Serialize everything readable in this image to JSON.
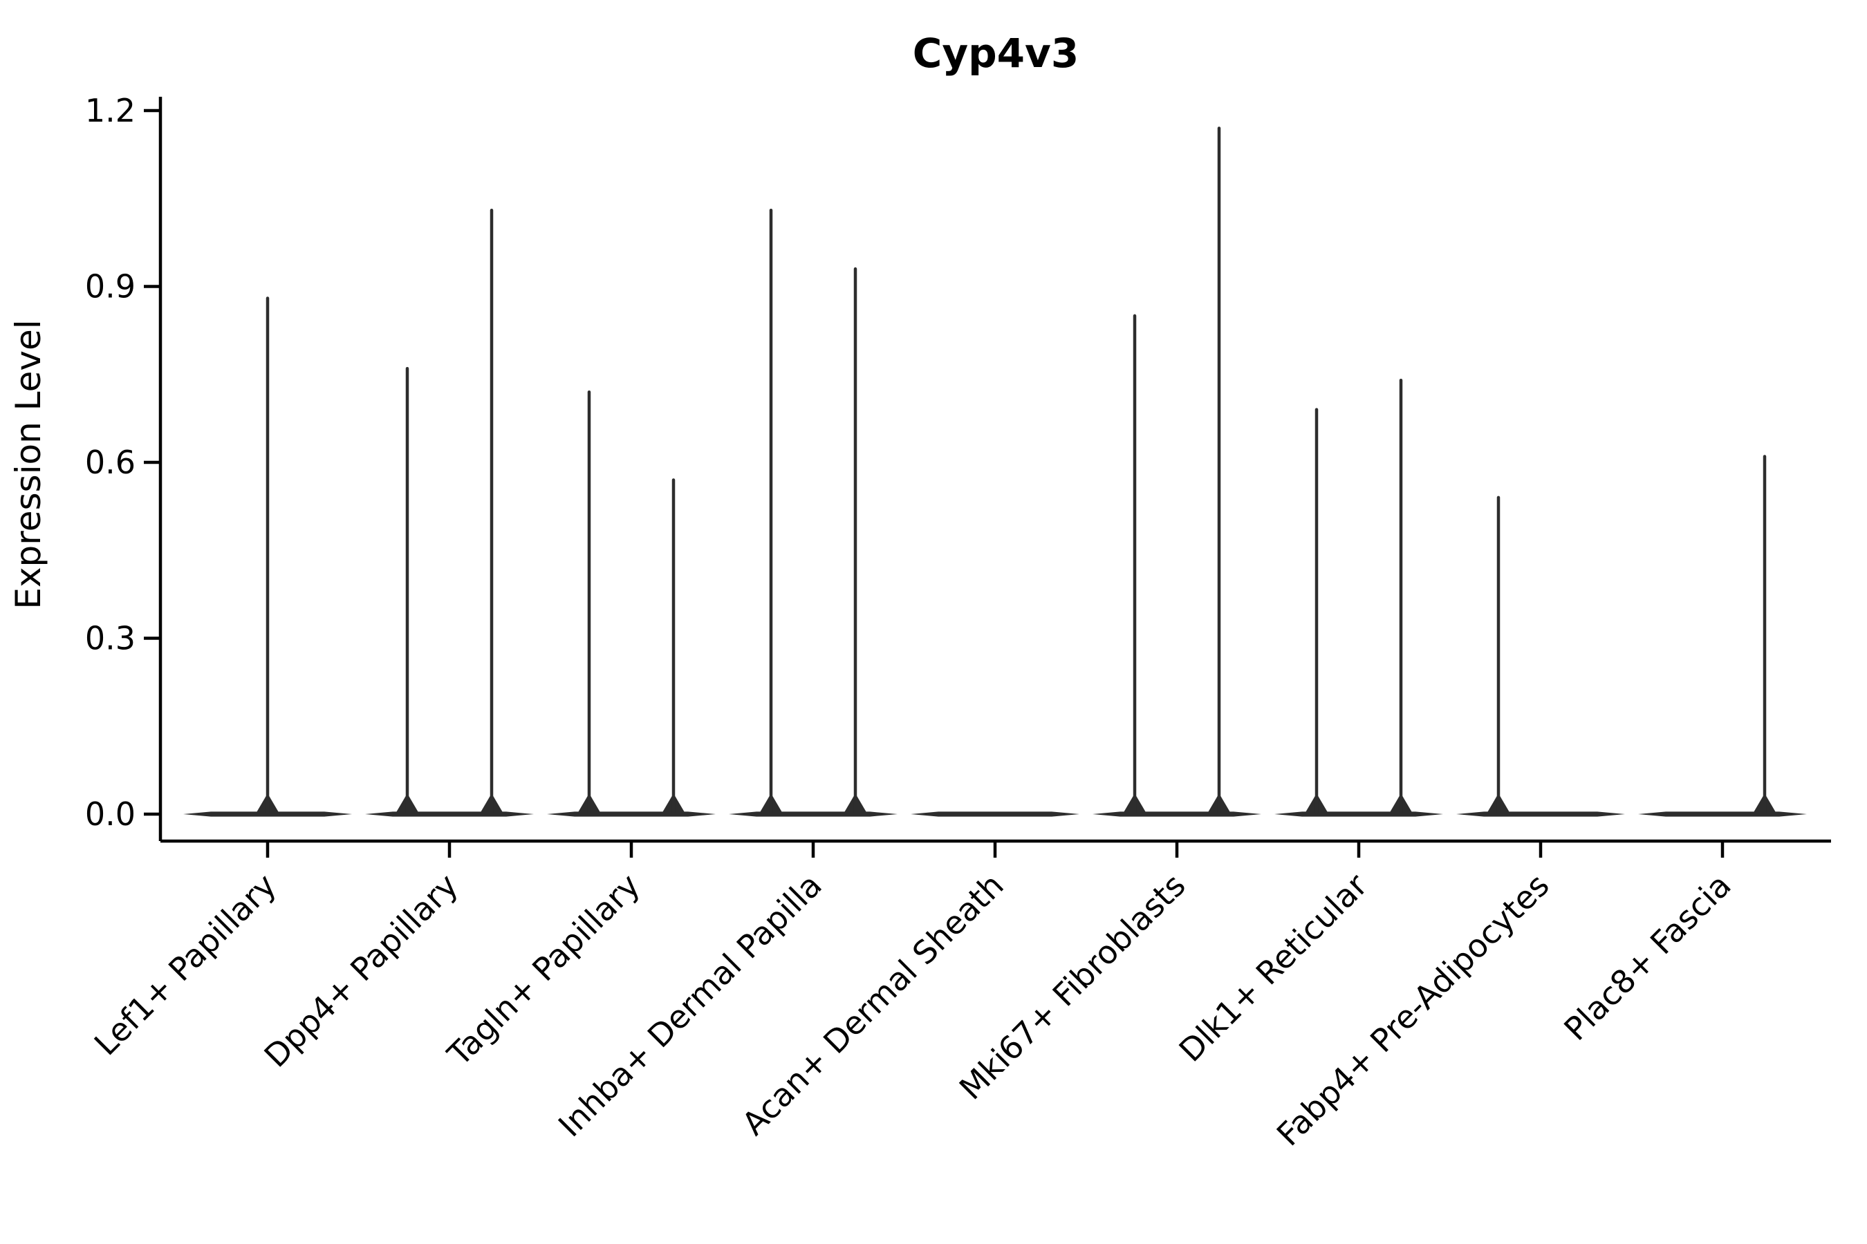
{
  "chart_data": {
    "type": "violin",
    "title": "Cyp4v3",
    "xlabel": "",
    "ylabel": "Expression Level",
    "ylim": [
      0.0,
      1.2
    ],
    "yticks": [
      0.0,
      0.3,
      0.6,
      0.9,
      1.2
    ],
    "grid": false,
    "legend": null,
    "x_tick_rotation": 45,
    "categories": [
      "Lef1+ Papillary",
      "Dpp4+ Papillary",
      "Tagln+ Papillary",
      "Inhba+ Dermal Papilla",
      "Acan+ Dermal Sheath",
      "Mki67+ Fibroblasts",
      "Dlk1+ Reticular",
      "Fabp4+ Pre-Adipocytes",
      "Plac8+ Fascia"
    ],
    "series": [
      {
        "category": "Lef1+ Papillary",
        "spikes": [
          {
            "pos": "center",
            "max": 0.88
          }
        ]
      },
      {
        "category": "Dpp4+ Papillary",
        "spikes": [
          {
            "pos": "left",
            "max": 0.76
          },
          {
            "pos": "right",
            "max": 1.03
          }
        ]
      },
      {
        "category": "Tagln+ Papillary",
        "spikes": [
          {
            "pos": "left",
            "max": 0.72
          },
          {
            "pos": "right",
            "max": 0.57
          }
        ]
      },
      {
        "category": "Inhba+ Dermal Papilla",
        "spikes": [
          {
            "pos": "left",
            "max": 1.03
          },
          {
            "pos": "right",
            "max": 0.93
          }
        ]
      },
      {
        "category": "Acan+ Dermal Sheath",
        "spikes": []
      },
      {
        "category": "Mki67+ Fibroblasts",
        "spikes": [
          {
            "pos": "left",
            "max": 0.85
          },
          {
            "pos": "right",
            "max": 1.17
          }
        ]
      },
      {
        "category": "Dlk1+ Reticular",
        "spikes": [
          {
            "pos": "left",
            "max": 0.69
          },
          {
            "pos": "right",
            "max": 0.74
          }
        ]
      },
      {
        "category": "Fabp4+ Pre-Adipocytes",
        "spikes": [
          {
            "pos": "left",
            "max": 0.54
          }
        ]
      },
      {
        "category": "Plac8+ Fascia",
        "spikes": [
          {
            "pos": "right",
            "max": 0.61
          }
        ]
      }
    ],
    "colors": {
      "violin": "#2d2d2d",
      "axis": "#000000",
      "text": "#000000",
      "background": "#ffffff"
    }
  }
}
